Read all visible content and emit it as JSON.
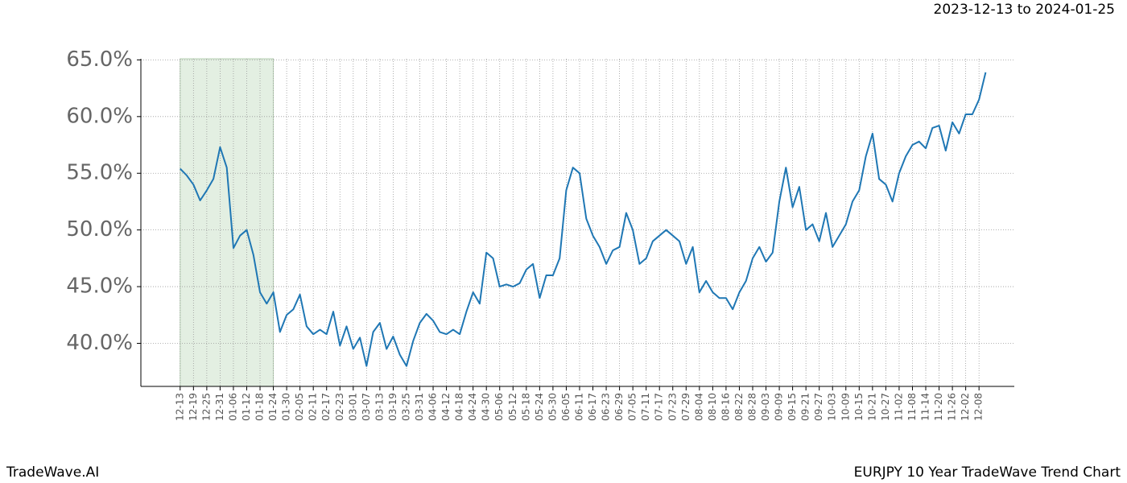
{
  "chart_data": {
    "type": "line",
    "title": "2023-12-13 to 2024-01-25",
    "footer_left": "TradeWave.AI",
    "footer_right": "EURJPY 10 Year TradeWave Trend Chart",
    "categories": [
      "12-13",
      null,
      "12-19",
      null,
      "12-25",
      null,
      "12-31",
      null,
      "01-06",
      null,
      "01-12",
      null,
      "01-18",
      null,
      "01-24",
      null,
      "01-30",
      null,
      "02-05",
      null,
      "02-11",
      null,
      "02-17",
      null,
      "02-23",
      null,
      "03-01",
      null,
      "03-07",
      null,
      "03-13",
      null,
      "03-19",
      null,
      "03-25",
      null,
      "03-31",
      null,
      "04-06",
      null,
      "04-12",
      null,
      "04-18",
      null,
      "04-24",
      null,
      "04-30",
      null,
      "05-06",
      null,
      "05-12",
      null,
      "05-18",
      null,
      "05-24",
      null,
      "05-30",
      null,
      "06-05",
      null,
      "06-11",
      null,
      "06-17",
      null,
      "06-23",
      null,
      "06-29",
      null,
      "07-05",
      null,
      "07-11",
      null,
      "07-17",
      null,
      "07-23",
      null,
      "07-29",
      null,
      "08-04",
      null,
      "08-10",
      null,
      "08-16",
      null,
      "08-22",
      null,
      "08-28",
      null,
      "09-03",
      null,
      "09-09",
      null,
      "09-15",
      null,
      "09-21",
      null,
      "09-27",
      null,
      "10-03",
      null,
      "10-09",
      null,
      "10-15",
      null,
      "10-21",
      null,
      "10-27",
      null,
      "11-02",
      null,
      "11-08",
      null,
      "11-14",
      null,
      "11-20",
      null,
      "11-26",
      null,
      "12-02",
      null,
      "12-08",
      null
    ],
    "series": [
      {
        "color": "#1f77b4",
        "values": [
          55.4,
          54.8,
          54.0,
          52.6,
          53.5,
          54.5,
          57.3,
          55.5,
          48.4,
          49.5,
          50.0,
          47.8,
          44.5,
          43.5,
          44.5,
          41.0,
          42.5,
          43.0,
          44.3,
          41.5,
          40.8,
          41.2,
          40.8,
          42.8,
          39.8,
          41.5,
          39.5,
          40.5,
          38.0,
          41.0,
          41.8,
          39.5,
          40.6,
          39.0,
          38.0,
          40.2,
          41.8,
          42.6,
          42.0,
          41.0,
          40.8,
          41.2,
          40.8,
          42.8,
          44.5,
          43.5,
          48.0,
          47.5,
          45.0,
          45.2,
          45.0,
          45.3,
          46.5,
          47.0,
          44.0,
          46.0,
          46.0,
          47.5,
          53.5,
          55.5,
          55.0,
          51.0,
          49.5,
          48.5,
          47.0,
          48.2,
          48.5,
          51.5,
          50.0,
          47.0,
          47.5,
          49.0,
          49.5,
          50.0,
          49.5,
          49.0,
          47.0,
          48.5,
          44.5,
          45.5,
          44.5,
          44.0,
          44.0,
          43.0,
          44.5,
          45.5,
          47.5,
          48.5,
          47.2,
          48.0,
          52.5,
          55.5,
          52.0,
          53.8,
          50.0,
          50.5,
          49.0,
          51.5,
          48.5,
          49.5,
          50.5,
          52.5,
          53.5,
          56.5,
          58.5,
          54.5,
          54.0,
          52.5,
          55.0,
          56.5,
          57.5,
          57.8,
          57.2,
          59.0,
          59.2,
          57.0,
          59.5,
          58.5,
          60.2,
          60.2,
          61.5,
          63.9
        ]
      }
    ],
    "highlight": {
      "start": "12-13",
      "end": "01-24",
      "color": "#e3efe2"
    },
    "ylim": [
      36.2,
      65.1
    ],
    "yticks": [
      {
        "value": 40,
        "label": "40.0%"
      },
      {
        "value": 45,
        "label": "45.0%"
      },
      {
        "value": 50,
        "label": "50.0%"
      },
      {
        "value": 55,
        "label": "55.0%"
      },
      {
        "value": 60,
        "label": "60.0%"
      },
      {
        "value": 65,
        "label": "65.0%"
      }
    ],
    "grid": true
  }
}
